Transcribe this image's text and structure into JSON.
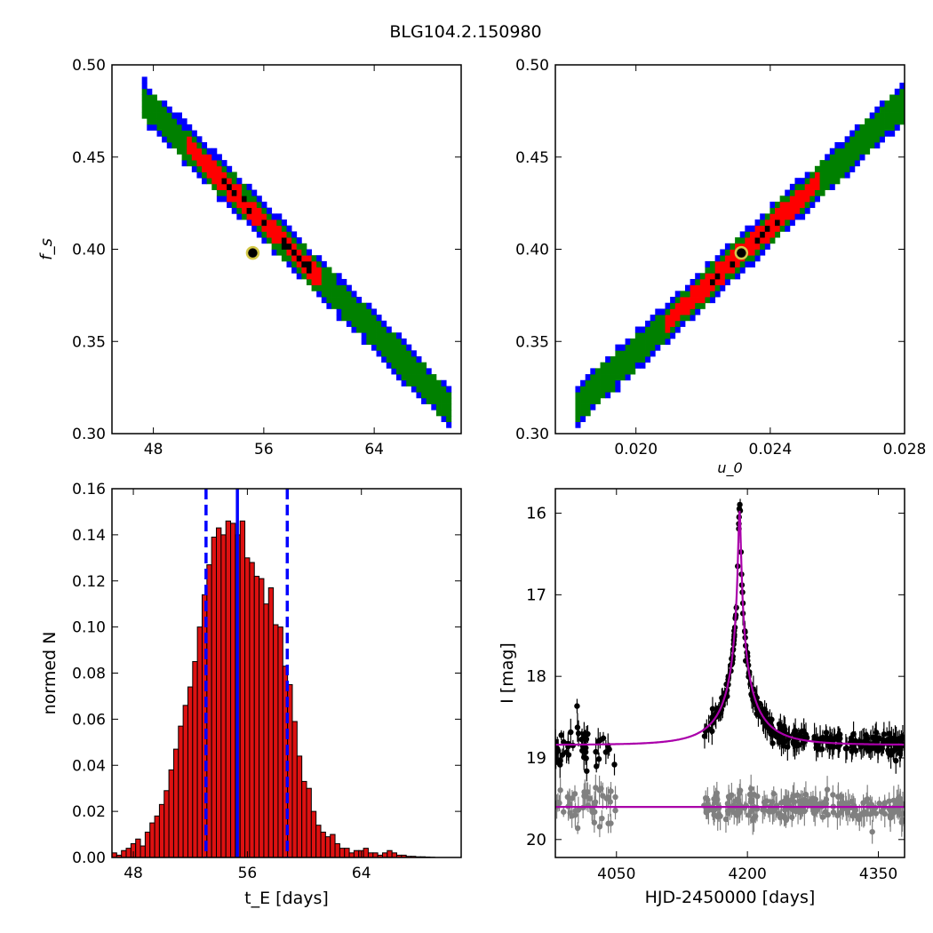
{
  "figure_title": "BLG104.2.150980",
  "colors": {
    "sigma3": "#0000ff",
    "sigma2": "#008000",
    "sigma1": "#ff0000",
    "best_cells": "#000000",
    "best_marker_fill": "#000000",
    "best_marker_edge": "#d4c94a",
    "hist_fill": "#dd1111",
    "vline": "#0000ff",
    "model": "#aa00aa",
    "data_primary": "#000000",
    "data_secondary": "#808080"
  },
  "chart_data": [
    {
      "id": "panel_te_fs",
      "type": "heatmap",
      "title": "",
      "xlabel": "",
      "ylabel": "f_s",
      "xlim": [
        45,
        70.3
      ],
      "ylim": [
        0.3,
        0.5
      ],
      "xticks": [
        48,
        56,
        64
      ],
      "xtick_labels": [
        "48",
        "56",
        "64"
      ],
      "yticks": [
        0.3,
        0.35,
        0.4,
        0.45,
        0.5
      ],
      "ytick_labels": [
        "0.30",
        "0.35",
        "0.40",
        "0.45",
        "0.50"
      ],
      "ridge": [
        [
          47.6,
          0.478
        ],
        [
          69.2,
          0.316
        ]
      ],
      "half_widths": {
        "sigma3": 0.011,
        "sigma2": 0.0085,
        "sigma1": 0.0055,
        "best": 0.0015
      },
      "red_x_range": [
        50.5,
        60.2
      ],
      "black_x_range": [
        52.5,
        59.5
      ],
      "best_fit": {
        "x": 55.2,
        "y": 0.398
      }
    },
    {
      "id": "panel_u0_fs",
      "type": "heatmap",
      "title": "",
      "xlabel": "u_0",
      "ylabel": "",
      "xlim": [
        0.0176,
        0.028
      ],
      "ylim": [
        0.3,
        0.5
      ],
      "xticks": [
        0.02,
        0.024,
        0.028
      ],
      "xtick_labels": [
        "0.020",
        "0.024",
        "0.028"
      ],
      "yticks": [
        0.3,
        0.35,
        0.4,
        0.45,
        0.5
      ],
      "ytick_labels": [
        "0.30",
        "0.35",
        "0.40",
        "0.45",
        "0.50"
      ],
      "ridge": [
        [
          0.0183,
          0.316
        ],
        [
          0.0279,
          0.478
        ]
      ],
      "half_widths": {
        "sigma3": 0.011,
        "sigma2": 0.0085,
        "sigma1": 0.0055,
        "best": 0.0015
      },
      "red_x_range": [
        0.0208,
        0.0255
      ],
      "black_x_range": [
        0.0222,
        0.0245
      ],
      "best_fit": {
        "x": 0.02314,
        "y": 0.398
      }
    },
    {
      "id": "panel_te_hist",
      "type": "bar",
      "title": "",
      "xlabel": "t_E [days]",
      "ylabel": "normed N",
      "xlim": [
        46.5,
        71.0
      ],
      "ylim": [
        0.0,
        0.16
      ],
      "xticks": [
        48,
        56,
        64
      ],
      "xtick_labels": [
        "48",
        "56",
        "64"
      ],
      "yticks": [
        0.0,
        0.02,
        0.04,
        0.06,
        0.08,
        0.1,
        0.12,
        0.14,
        0.16
      ],
      "ytick_labels": [
        "0.00",
        "0.02",
        "0.04",
        "0.06",
        "0.08",
        "0.10",
        "0.12",
        "0.14",
        "0.16"
      ],
      "bin_start": 46.5,
      "bin_width": 0.333,
      "values": [
        0.002,
        0.001,
        0.003,
        0.004,
        0.006,
        0.008,
        0.005,
        0.011,
        0.015,
        0.018,
        0.023,
        0.029,
        0.038,
        0.047,
        0.057,
        0.066,
        0.074,
        0.085,
        0.1,
        0.114,
        0.127,
        0.139,
        0.143,
        0.14,
        0.146,
        0.145,
        0.14,
        0.146,
        0.13,
        0.128,
        0.122,
        0.121,
        0.11,
        0.117,
        0.101,
        0.1,
        0.083,
        0.075,
        0.059,
        0.044,
        0.033,
        0.03,
        0.02,
        0.014,
        0.011,
        0.009,
        0.01,
        0.006,
        0.004,
        0.004,
        0.002,
        0.003,
        0.003,
        0.004,
        0.002,
        0.002,
        0.001,
        0.002,
        0.003,
        0.002,
        0.001,
        0.001,
        0.0005,
        0.0005,
        0.0003,
        0.0003,
        0.0002,
        0.0001
      ],
      "vlines": [
        {
          "x": 53.1,
          "style": "dashed"
        },
        {
          "x": 55.3,
          "style": "solid"
        },
        {
          "x": 58.8,
          "style": "dashed"
        }
      ]
    },
    {
      "id": "panel_lightcurve",
      "type": "scatter",
      "title": "",
      "xlabel": "HJD-2450000 [days]",
      "ylabel": "I [mag]",
      "xlim": [
        3980,
        4380
      ],
      "ylim": [
        20.22,
        15.7
      ],
      "y_inverted": true,
      "xticks": [
        4050,
        4200,
        4350
      ],
      "xtick_labels": [
        "4050",
        "4200",
        "4350"
      ],
      "yticks": [
        16,
        17,
        18,
        19,
        20
      ],
      "ytick_labels": [
        "16",
        "17",
        "18",
        "19",
        "20"
      ],
      "model": {
        "t0": 4191,
        "baseline": 18.84,
        "peak": 15.97,
        "tE": 55,
        "u0": 0.023,
        "secondary_baseline": 19.6
      },
      "series": [],
      "data_ranges": {
        "primary_early": [
          3980,
          4050
        ],
        "primary_late": [
          4150,
          4380
        ],
        "secondary_early": [
          3980,
          4050
        ],
        "secondary_late": [
          4150,
          4380
        ]
      }
    }
  ]
}
